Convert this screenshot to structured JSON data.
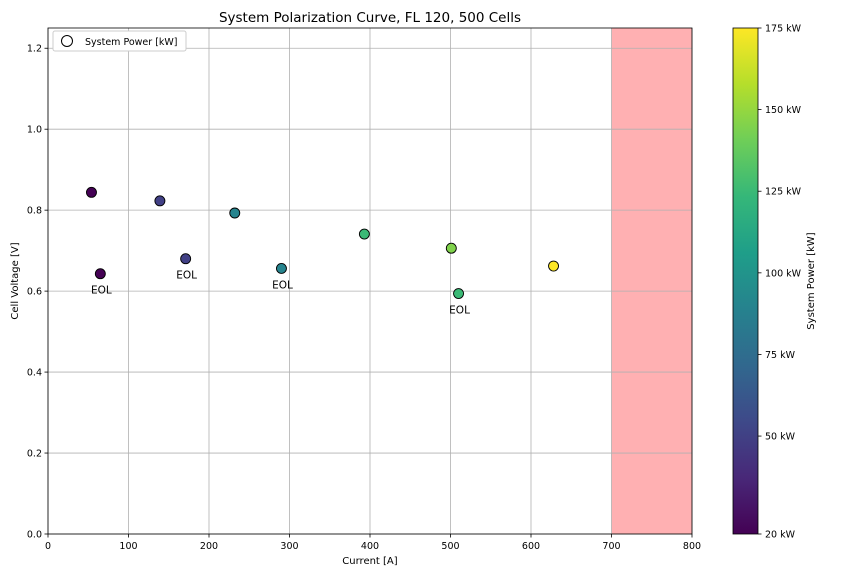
{
  "chart_data": {
    "type": "scatter",
    "title": "System Polarization Curve, FL 120, 500 Cells",
    "xlabel": "Current [A]",
    "ylabel": "Cell Voltage [V]",
    "xlim": [
      0,
      800
    ],
    "ylim": [
      0,
      1.25
    ],
    "xticks": [
      0,
      100,
      200,
      300,
      400,
      500,
      600,
      700,
      800
    ],
    "yticks": [
      0.0,
      0.2,
      0.4,
      0.6,
      0.8,
      1.0,
      1.2
    ],
    "grid": true,
    "legend": {
      "placement": "top-left",
      "label": "System Power [kW]"
    },
    "shaded_region": {
      "x_from": 700,
      "x_to": 800,
      "color": "#ffb0b2"
    },
    "points": [
      {
        "x": 54,
        "y": 0.844,
        "power_kw": 20
      },
      {
        "x": 65,
        "y": 0.643,
        "power_kw": 20,
        "label": "EOL"
      },
      {
        "x": 139,
        "y": 0.823,
        "power_kw": 50
      },
      {
        "x": 171,
        "y": 0.68,
        "power_kw": 50,
        "label": "EOL"
      },
      {
        "x": 232,
        "y": 0.793,
        "power_kw": 90
      },
      {
        "x": 290,
        "y": 0.656,
        "power_kw": 90,
        "label": "EOL"
      },
      {
        "x": 393,
        "y": 0.741,
        "power_kw": 125
      },
      {
        "x": 501,
        "y": 0.706,
        "power_kw": 145
      },
      {
        "x": 510,
        "y": 0.594,
        "power_kw": 125,
        "label": "EOL"
      },
      {
        "x": 628,
        "y": 0.662,
        "power_kw": 175
      }
    ],
    "colorbar": {
      "label": "System Power [kW]",
      "range": [
        20,
        175
      ],
      "ticks": [
        20,
        50,
        75,
        100,
        125,
        150,
        175
      ],
      "tick_labels": [
        "20 kW",
        "50 kW",
        "75 kW",
        "100 kW",
        "125 kW",
        "150 kW",
        "175 kW"
      ],
      "colormap": [
        "#440154",
        "#482878",
        "#3e4989",
        "#31688e",
        "#26828e",
        "#1f9e89",
        "#35b779",
        "#6ece58",
        "#b5de2b",
        "#fde725"
      ]
    }
  }
}
